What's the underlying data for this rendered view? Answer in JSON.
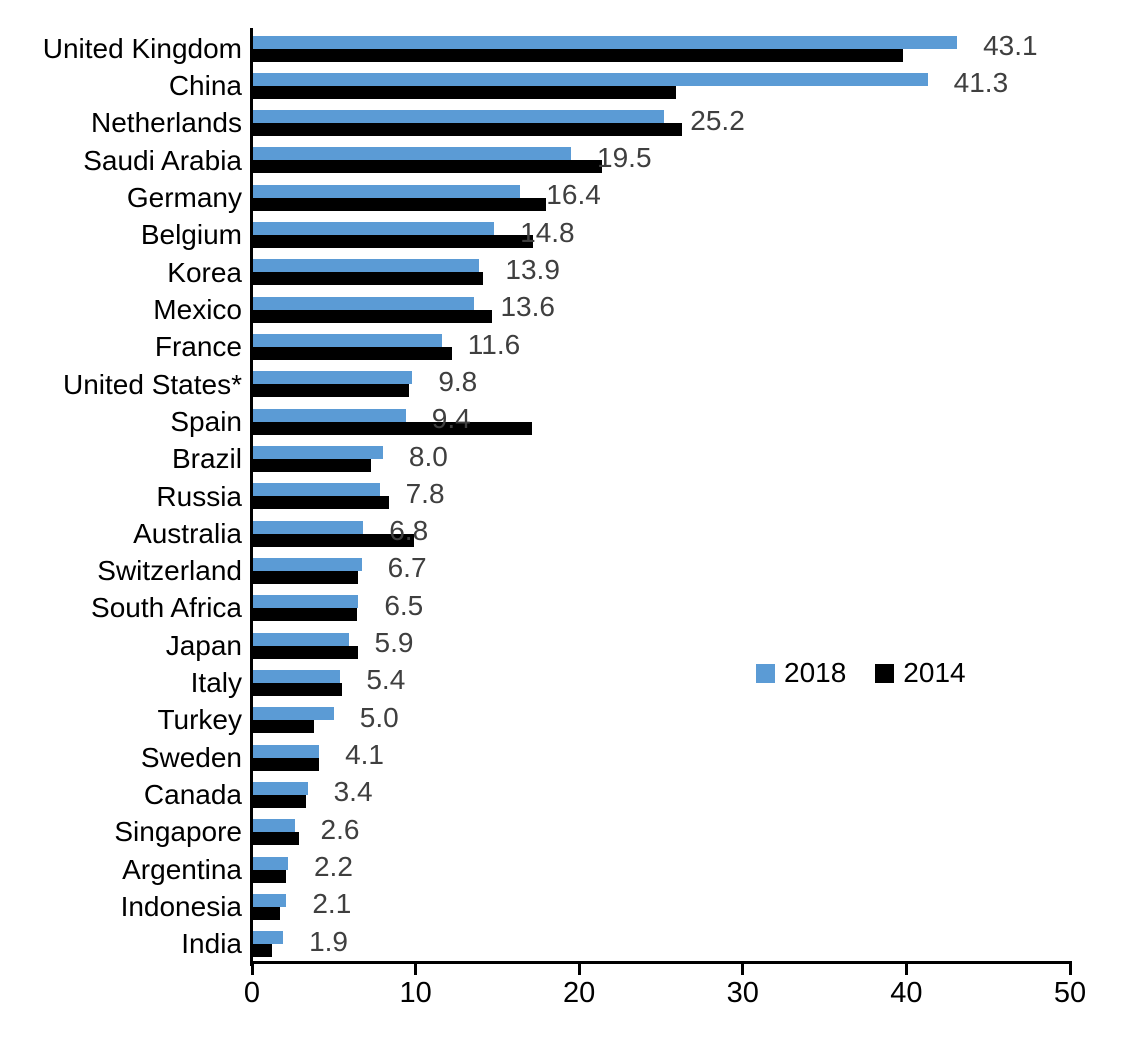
{
  "chart_data": {
    "type": "bar",
    "orientation": "horizontal",
    "title": "",
    "xlabel": "",
    "ylabel": "",
    "xlim": [
      0,
      50
    ],
    "xticks": [
      "0",
      "10",
      "20",
      "30",
      "40",
      "50"
    ],
    "grid": false,
    "legend_position": "middle-right",
    "categories": [
      "United Kingdom",
      "China",
      "Netherlands",
      "Saudi Arabia",
      "Germany",
      "Belgium",
      "Korea",
      "Mexico",
      "France",
      "United States*",
      "Spain",
      "Brazil",
      "Russia",
      "Australia",
      "Switzerland",
      "South Africa",
      "Japan",
      "Italy",
      "Turkey",
      "Sweden",
      "Canada",
      "Singapore",
      "Argentina",
      "Indonesia",
      "India"
    ],
    "series": [
      {
        "name": "2018",
        "color": "#5b9bd5",
        "values": [
          43.1,
          41.3,
          25.2,
          19.5,
          16.4,
          14.8,
          13.9,
          13.6,
          11.6,
          9.8,
          9.4,
          8.0,
          7.8,
          6.8,
          6.7,
          6.5,
          5.9,
          5.4,
          5.0,
          4.1,
          3.4,
          2.6,
          2.2,
          2.1,
          1.9
        ]
      },
      {
        "name": "2014",
        "color": "#000000",
        "values": [
          39.8,
          25.9,
          26.3,
          21.4,
          18.0,
          17.2,
          14.1,
          14.7,
          12.2,
          9.6,
          17.1,
          7.3,
          8.4,
          9.9,
          6.5,
          6.4,
          6.5,
          5.5,
          3.8,
          4.1,
          3.3,
          2.9,
          2.1,
          1.7,
          1.2
        ]
      }
    ],
    "value_labels": {
      "series": "2018",
      "color": "#3f3f3f",
      "texts": [
        "43.1",
        "41.3",
        "25.2",
        "19.5",
        "16.4",
        "14.8",
        "13.9",
        "13.6",
        "11.6",
        "9.8",
        "9.4",
        "8.0",
        "7.8",
        "6.8",
        "6.7",
        "6.5",
        "5.9",
        "5.4",
        "5.0",
        "4.1",
        "3.4",
        "2.6",
        "2.2",
        "2.1",
        "1.9"
      ]
    },
    "legend": {
      "entries": [
        {
          "label": "2018",
          "color": "#5b9bd5"
        },
        {
          "label": "2014",
          "color": "#000000"
        }
      ]
    },
    "axis_color": "#000000"
  }
}
